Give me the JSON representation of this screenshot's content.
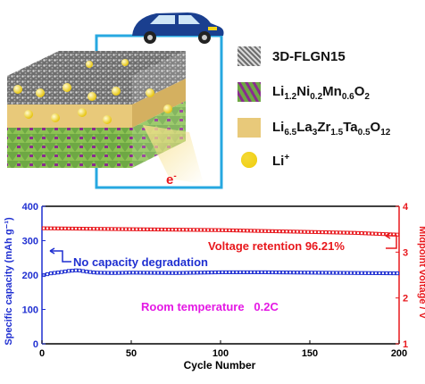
{
  "schematic": {
    "electron_label": "e",
    "electron_sup": "-"
  },
  "legend": {
    "items": [
      {
        "key": "3D-FLGN15"
      },
      {
        "key": "Li1.2Ni0.2Mn0.6O2"
      },
      {
        "key": "Li6.5La3Zr1.5Ta0.5O12"
      },
      {
        "key": "Li+"
      }
    ]
  },
  "colors": {
    "circuit_wire": "#27a8e0",
    "car_body": "#1a3f8f",
    "lithium_ion": "#f2d21a",
    "garnet_layer": "#e8c97a",
    "cathode_green": "#7ab648",
    "cathode_purple": "#8a2c8e",
    "capacity_series": "#1f2fd1",
    "voltage_series": "#e8181d",
    "annotation_magenta": "#e419e4"
  },
  "chart_data": {
    "type": "scatter",
    "x_label": "Cycle Number",
    "x_ticks": [
      "0",
      "50",
      "100",
      "150",
      "200"
    ],
    "xlim": [
      0,
      200
    ],
    "y_left_label": "Specific capacity (mAh g⁻¹)",
    "y_left_ticks": [
      "0",
      "100",
      "200",
      "300",
      "400"
    ],
    "y_left_lim": [
      0,
      400
    ],
    "y_right_label": "Midpoint voltage / V",
    "y_right_ticks": [
      "1",
      "2",
      "3",
      "4"
    ],
    "y_right_lim": [
      1,
      4
    ],
    "series": [
      {
        "name": "Specific capacity",
        "axis": "left",
        "x": [
          1,
          5,
          10,
          15,
          20,
          25,
          30,
          40,
          50,
          75,
          100,
          125,
          150,
          175,
          200
        ],
        "y": [
          200,
          205,
          208,
          212,
          214,
          210,
          207,
          206,
          207,
          206,
          208,
          208,
          207,
          206,
          205
        ]
      },
      {
        "name": "Midpoint voltage",
        "axis": "right",
        "x": [
          1,
          25,
          50,
          75,
          100,
          125,
          150,
          175,
          200
        ],
        "y": [
          3.52,
          3.51,
          3.5,
          3.49,
          3.48,
          3.46,
          3.44,
          3.42,
          3.38
        ]
      }
    ],
    "annotations": [
      {
        "text": "Voltage retention 96.21%",
        "color": "#e8181d"
      },
      {
        "text": "No capacity degradation",
        "color": "#1f2fd1"
      },
      {
        "text": "Room temperature   0.2C",
        "color": "#e419e4"
      }
    ]
  }
}
